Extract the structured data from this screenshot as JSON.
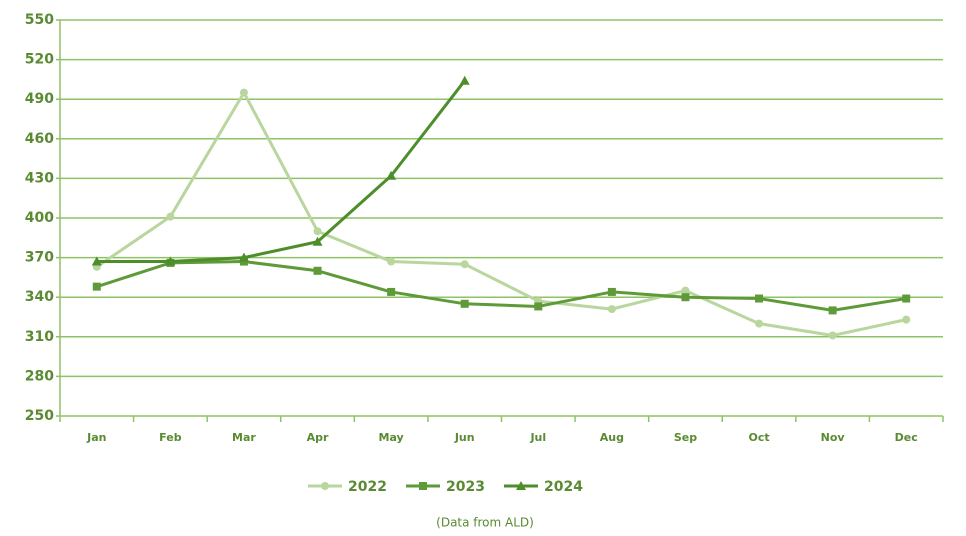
{
  "chart_data": {
    "type": "line",
    "categories": [
      "Jan",
      "Feb",
      "Mar",
      "Apr",
      "May",
      "Jun",
      "Jul",
      "Aug",
      "Sep",
      "Oct",
      "Nov",
      "Dec"
    ],
    "series": [
      {
        "name": "2022",
        "color": "#b8d69e",
        "marker": "circle",
        "values": [
          363,
          401,
          495,
          390,
          367,
          365,
          337,
          331,
          345,
          320,
          311,
          323
        ]
      },
      {
        "name": "2023",
        "color": "#5e9a38",
        "marker": "square",
        "values": [
          348,
          366,
          367,
          360,
          344,
          335,
          333,
          344,
          340,
          339,
          330,
          339
        ]
      },
      {
        "name": "2024",
        "color": "#4e8e2a",
        "marker": "triangle",
        "values": [
          367,
          367,
          370,
          382,
          432,
          504,
          null,
          null,
          null,
          null,
          null,
          null
        ]
      }
    ],
    "ylim": [
      250,
      550
    ],
    "yticks": [
      250,
      280,
      310,
      340,
      370,
      400,
      430,
      460,
      490,
      520,
      550
    ],
    "grid": true,
    "legend": "bottom",
    "note": "(Data from ALD)"
  }
}
